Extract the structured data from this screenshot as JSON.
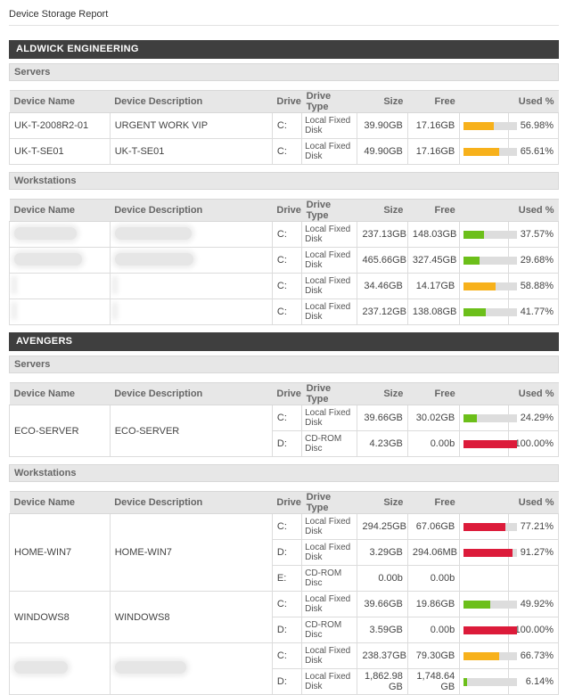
{
  "title": "Device Storage Report",
  "columns": [
    "Device Name",
    "Device Description",
    "Drive",
    "Drive Type",
    "Size",
    "Free",
    "Used %"
  ],
  "companies": [
    {
      "name": "ALDWICK ENGINEERING",
      "sections": [
        {
          "label": "Servers",
          "devices": [
            {
              "name": "UK-T-2008R2-01",
              "description": "URGENT WORK VIP",
              "drives": [
                {
                  "drive": "C:",
                  "type": "Local Fixed Disk",
                  "size": "39.90GB",
                  "free": "17.16GB",
                  "used": "56.98%",
                  "used_value": 56.98,
                  "color": "#f7b11b"
                }
              ]
            },
            {
              "name": "UK-T-SE01",
              "description": "UK-T-SE01",
              "drives": [
                {
                  "drive": "C:",
                  "type": "Local Fixed Disk",
                  "size": "49.90GB",
                  "free": "17.16GB",
                  "used": "65.61%",
                  "used_value": 65.61,
                  "color": "#f7b11b"
                }
              ]
            }
          ]
        },
        {
          "label": "Workstations",
          "devices": [
            {
              "name": "",
              "description": "",
              "redacted": true,
              "drives": [
                {
                  "drive": "C:",
                  "type": "Local Fixed Disk",
                  "size": "237.13GB",
                  "free": "148.03GB",
                  "used": "37.57%",
                  "used_value": 37.57,
                  "color": "#6cbf1a"
                }
              ]
            },
            {
              "name": "",
              "description": "",
              "redacted": true,
              "drives": [
                {
                  "drive": "C:",
                  "type": "Local Fixed Disk",
                  "size": "465.66GB",
                  "free": "327.45GB",
                  "used": "29.68%",
                  "used_value": 29.68,
                  "color": "#6cbf1a"
                }
              ]
            },
            {
              "name": "",
              "description": "",
              "redacted": true,
              "drives": [
                {
                  "drive": "C:",
                  "type": "Local Fixed Disk",
                  "size": "34.46GB",
                  "free": "14.17GB",
                  "used": "58.88%",
                  "used_value": 58.88,
                  "color": "#f7b11b"
                }
              ]
            },
            {
              "name": "",
              "description": "",
              "redacted": true,
              "drives": [
                {
                  "drive": "C:",
                  "type": "Local Fixed Disk",
                  "size": "237.12GB",
                  "free": "138.08GB",
                  "used": "41.77%",
                  "used_value": 41.77,
                  "color": "#6cbf1a"
                }
              ]
            }
          ]
        }
      ]
    },
    {
      "name": "AVENGERS",
      "sections": [
        {
          "label": "Servers",
          "devices": [
            {
              "name": "ECO-SERVER",
              "description": "ECO-SERVER",
              "drives": [
                {
                  "drive": "C:",
                  "type": "Local Fixed Disk",
                  "size": "39.66GB",
                  "free": "30.02GB",
                  "used": "24.29%",
                  "used_value": 24.29,
                  "color": "#6cbf1a"
                },
                {
                  "drive": "D:",
                  "type": "CD-ROM Disc",
                  "size": "4.23GB",
                  "free": "0.00b",
                  "used": "100.00%",
                  "used_value": 100,
                  "color": "#dc1b3a"
                }
              ]
            }
          ]
        },
        {
          "label": "Workstations",
          "devices": [
            {
              "name": "HOME-WIN7",
              "description": "HOME-WIN7",
              "drives": [
                {
                  "drive": "C:",
                  "type": "Local Fixed Disk",
                  "size": "294.25GB",
                  "free": "67.06GB",
                  "used": "77.21%",
                  "used_value": 77.21,
                  "color": "#dc1b3a"
                },
                {
                  "drive": "D:",
                  "type": "Local Fixed Disk",
                  "size": "3.29GB",
                  "free": "294.06MB",
                  "used": "91.27%",
                  "used_value": 91.27,
                  "color": "#dc1b3a"
                },
                {
                  "drive": "E:",
                  "type": "CD-ROM Disc",
                  "size": "0.00b",
                  "free": "0.00b",
                  "used": "",
                  "used_value": null,
                  "color": ""
                }
              ]
            },
            {
              "name": "WINDOWS8",
              "description": "WINDOWS8",
              "drives": [
                {
                  "drive": "C:",
                  "type": "Local Fixed Disk",
                  "size": "39.66GB",
                  "free": "19.86GB",
                  "used": "49.92%",
                  "used_value": 49.92,
                  "color": "#6cbf1a"
                },
                {
                  "drive": "D:",
                  "type": "CD-ROM Disc",
                  "size": "3.59GB",
                  "free": "0.00b",
                  "used": "100.00%",
                  "used_value": 100,
                  "color": "#dc1b3a"
                }
              ]
            },
            {
              "name": "",
              "description": "",
              "redacted": true,
              "drives": [
                {
                  "drive": "C:",
                  "type": "Local Fixed Disk",
                  "size": "238.37GB",
                  "free": "79.30GB",
                  "used": "66.73%",
                  "used_value": 66.73,
                  "color": "#f7b11b"
                },
                {
                  "drive": "D:",
                  "type": "Local Fixed Disk",
                  "size": "1,862.98 GB",
                  "free": "1,748.64 GB",
                  "used": "6.14%",
                  "used_value": 6.14,
                  "color": "#6cbf1a"
                }
              ]
            }
          ]
        }
      ]
    }
  ]
}
